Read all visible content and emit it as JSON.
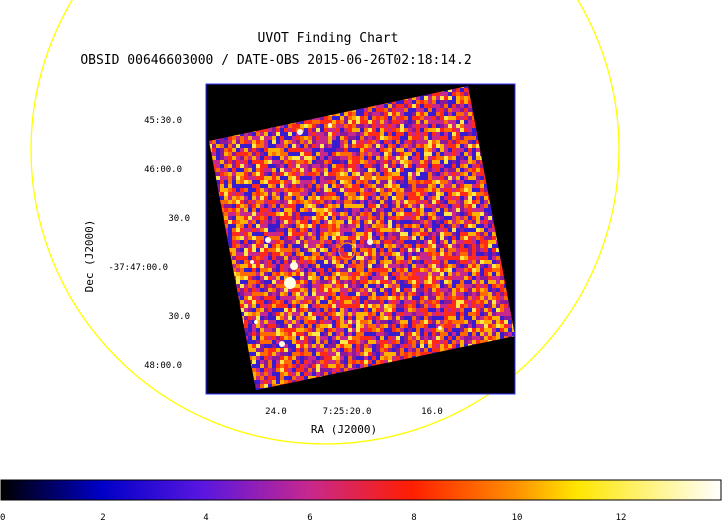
{
  "header": {
    "title": "UVOT Finding Chart",
    "subtitle": "OBSID 00646603000 / DATE-OBS 2015-06-26T02:18:14.2"
  },
  "axes": {
    "dec_label": "Dec (J2000)",
    "ra_label": "RA (J2000)",
    "dec_ticks": [
      "45:30.0",
      "46:00.0",
      "30.0",
      "-37:47:00.0",
      "30.0",
      "48:00.0"
    ],
    "ra_ticks": [
      "24.0",
      "7:25:20.0",
      "16.0"
    ]
  },
  "colorbar": {
    "ticks": [
      "0",
      "2",
      "4",
      "6",
      "8",
      "10",
      "12"
    ],
    "colors": [
      "#000000",
      "#0000c8",
      "#5a16e0",
      "#c8288c",
      "#ff1e00",
      "#ffd200",
      "#ffffff"
    ]
  },
  "overlay": {
    "circle_color": "#ffff00",
    "marker_color": "#ff8c00"
  }
}
